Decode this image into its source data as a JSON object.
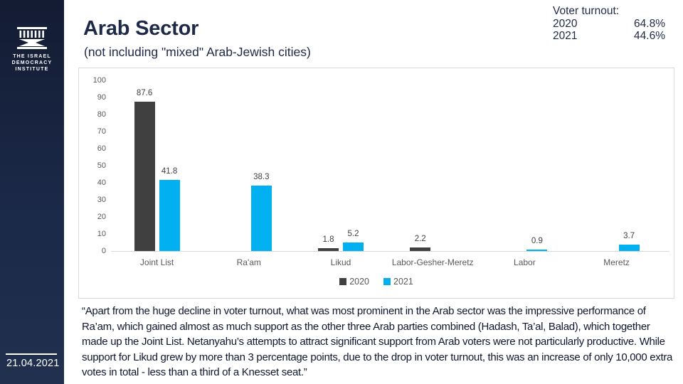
{
  "colors": {
    "brand_navy": "#1e2947",
    "sidebar_navy": "#1c2a4a",
    "series_2020": "#404040",
    "series_2021": "#00B0F0",
    "axis_gray": "#d9d9d9",
    "label_gray": "#595959"
  },
  "sidebar": {
    "logo_icon": "idi-column-icon",
    "logo_lines": {
      "line1": "THE ISRAEL",
      "line2": "DEMOCRACY",
      "line3": "INSTITUTE"
    },
    "date": "21.04.2021"
  },
  "header": {
    "title": "Arab Sector",
    "subtitle": "(not including \"mixed\" Arab-Jewish cities)"
  },
  "turnout": {
    "title": "Voter turnout:",
    "rows": [
      {
        "year": "2020",
        "value": "64.8%"
      },
      {
        "year": "2021",
        "value": "44.6%"
      }
    ]
  },
  "chart_data": {
    "type": "bar",
    "title": "",
    "xlabel": "",
    "ylabel": "",
    "categories": [
      "Joint List",
      "Ra'am",
      "Likud",
      "Labor-Gesher-Meretz",
      "Labor",
      "Meretz"
    ],
    "series": [
      {
        "name": "2020",
        "color": "#404040",
        "values": [
          87.6,
          null,
          1.8,
          2.2,
          null,
          null
        ]
      },
      {
        "name": "2021",
        "color": "#00B0F0",
        "values": [
          41.8,
          38.3,
          5.2,
          null,
          0.9,
          3.7
        ]
      }
    ],
    "ylim": [
      0,
      100
    ],
    "ytick_step": 10,
    "grid": false,
    "legend_position": "bottom-center",
    "data_labels": true
  },
  "quote": "“Apart from the huge decline in voter turnout, what was most prominent in the Arab sector was the impressive performance of Ra’am, which gained almost as much support as the other three Arab parties combined (Hadash, Ta’al, Balad), which together made up the Joint List. Netanyahu’s attempts to attract significant support from Arab voters were not particularly productive. While support for Likud grew by more than 3 percentage points, due to the drop in voter turnout, this was an increase of only 10,000 extra votes in total - less than a third of a Knesset seat.”"
}
